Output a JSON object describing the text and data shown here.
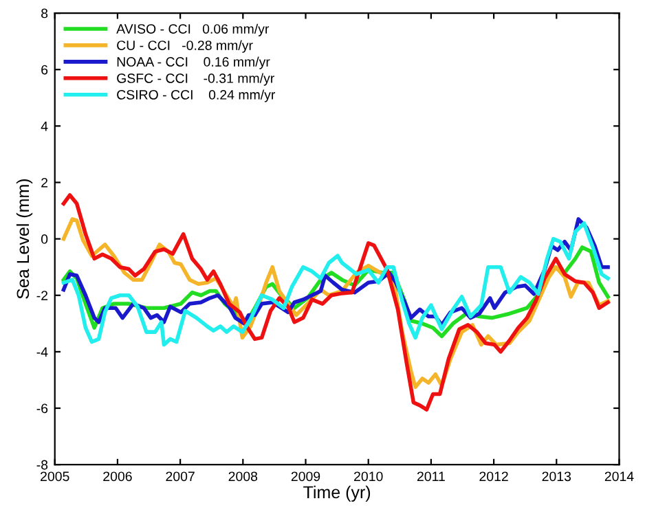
{
  "chart_data": {
    "type": "line",
    "xlabel": "Time (yr)",
    "ylabel": "Sea Level (mm)",
    "xlim": [
      2005,
      2014
    ],
    "xticks": [
      2005,
      2006,
      2007,
      2008,
      2009,
      2010,
      2011,
      2012,
      2013,
      2014
    ],
    "ylim": [
      -8,
      8
    ],
    "yticks": [
      -8,
      -6,
      -4,
      -2,
      0,
      2,
      4,
      6,
      8
    ],
    "grid": false,
    "legend": "top left",
    "marker": "none",
    "line_style": "solid",
    "series": [
      {
        "name": "AVISO - CCI   0.06 mm/yr",
        "color": "#22dd22",
        "x": [
          2005.14,
          2005.24,
          2005.35,
          2005.49,
          2005.63,
          2005.76,
          2005.94,
          2006.18,
          2006.46,
          2006.74,
          2007.01,
          2007.19,
          2007.33,
          2007.47,
          2007.57,
          2007.71,
          2007.92,
          2008.06,
          2008.19,
          2008.37,
          2008.47,
          2008.61,
          2008.82,
          2009.03,
          2009.24,
          2009.41,
          2009.58,
          2009.78,
          2010.0,
          2010.23,
          2010.4,
          2010.58,
          2010.68,
          2010.86,
          2011.03,
          2011.17,
          2011.35,
          2011.56,
          2011.77,
          2011.97,
          2012.25,
          2012.53,
          2012.74,
          2012.95,
          2013.13,
          2013.3,
          2013.41,
          2013.55,
          2013.68,
          2013.82
        ],
        "values": [
          -1.45,
          -1.15,
          -1.4,
          -2.3,
          -3.15,
          -2.45,
          -2.3,
          -2.3,
          -2.45,
          -2.45,
          -2.3,
          -1.9,
          -2.0,
          -1.85,
          -1.85,
          -2.3,
          -2.7,
          -2.95,
          -2.45,
          -1.7,
          -1.6,
          -2.0,
          -2.45,
          -2.1,
          -1.45,
          -1.2,
          -1.45,
          -1.65,
          -1.1,
          -1.2,
          -1.2,
          -2.2,
          -2.9,
          -3.0,
          -3.15,
          -3.45,
          -3.0,
          -2.65,
          -2.75,
          -2.8,
          -2.65,
          -2.45,
          -1.9,
          -1.0,
          -1.2,
          -0.7,
          -0.3,
          -0.45,
          -1.55,
          -2.05
        ]
      },
      {
        "name": "CU - CCI   -0.28 mm/yr",
        "color": "#f5b52a",
        "x": [
          2005.14,
          2005.28,
          2005.35,
          2005.45,
          2005.59,
          2005.8,
          2005.94,
          2006.11,
          2006.25,
          2006.39,
          2006.53,
          2006.67,
          2006.81,
          2006.91,
          2007.01,
          2007.15,
          2007.29,
          2007.43,
          2007.57,
          2007.71,
          2007.85,
          2007.89,
          2007.99,
          2008.12,
          2008.26,
          2008.37,
          2008.47,
          2008.58,
          2008.72,
          2008.85,
          2009.03,
          2009.24,
          2009.37,
          2009.58,
          2009.81,
          2010.0,
          2010.23,
          2010.4,
          2010.54,
          2010.68,
          2010.75,
          2010.86,
          2010.96,
          2011.07,
          2011.17,
          2011.31,
          2011.49,
          2011.66,
          2011.8,
          2011.91,
          2012.04,
          2012.25,
          2012.39,
          2012.57,
          2012.74,
          2012.88,
          2012.99,
          2013.13,
          2013.23,
          2013.34,
          2013.51,
          2013.68,
          2013.82
        ],
        "values": [
          0.0,
          0.7,
          0.65,
          -0.05,
          -0.6,
          -0.2,
          -0.6,
          -1.2,
          -1.45,
          -1.45,
          -0.85,
          -0.2,
          -0.45,
          -0.85,
          -0.9,
          -1.45,
          -1.6,
          -1.55,
          -1.4,
          -1.9,
          -2.4,
          -2.1,
          -3.5,
          -3.1,
          -2.3,
          -1.55,
          -1.0,
          -1.85,
          -2.3,
          -2.7,
          -2.3,
          -1.8,
          -2.0,
          -1.85,
          -1.2,
          -0.95,
          -1.25,
          -1.4,
          -3.3,
          -4.7,
          -5.25,
          -4.95,
          -5.1,
          -4.8,
          -5.2,
          -4.25,
          -3.3,
          -3.05,
          -3.75,
          -3.45,
          -3.75,
          -3.7,
          -3.3,
          -2.9,
          -2.05,
          -1.35,
          -1.0,
          -1.35,
          -2.05,
          -1.55,
          -1.55,
          -2.35,
          -2.2
        ]
      },
      {
        "name": "NOAA - CCI    0.16 mm/yr",
        "color": "#1a1acc",
        "x": [
          2005.14,
          2005.24,
          2005.35,
          2005.49,
          2005.63,
          2005.7,
          2005.8,
          2005.97,
          2006.08,
          2006.25,
          2006.42,
          2006.53,
          2006.63,
          2006.74,
          2006.84,
          2007.01,
          2007.15,
          2007.33,
          2007.47,
          2007.6,
          2007.78,
          2007.88,
          2008.02,
          2008.09,
          2008.19,
          2008.3,
          2008.47,
          2008.58,
          2008.72,
          2008.82,
          2008.96,
          2009.1,
          2009.24,
          2009.31,
          2009.44,
          2009.58,
          2009.78,
          2010.0,
          2010.16,
          2010.33,
          2010.44,
          2010.58,
          2010.68,
          2010.82,
          2010.96,
          2011.07,
          2011.17,
          2011.31,
          2011.49,
          2011.63,
          2011.77,
          2011.94,
          2012.01,
          2012.18,
          2012.36,
          2012.5,
          2012.64,
          2012.81,
          2012.92,
          2013.02,
          2013.13,
          2013.23,
          2013.35,
          2013.48,
          2013.61,
          2013.72,
          2013.82
        ],
        "values": [
          -1.8,
          -1.25,
          -1.3,
          -2.0,
          -2.8,
          -2.95,
          -2.45,
          -2.45,
          -2.8,
          -2.3,
          -2.45,
          -2.8,
          -2.7,
          -2.95,
          -2.4,
          -2.6,
          -2.3,
          -2.25,
          -2.1,
          -2.0,
          -2.4,
          -2.8,
          -3.0,
          -2.7,
          -2.7,
          -2.3,
          -2.25,
          -2.4,
          -2.6,
          -2.25,
          -2.15,
          -2.0,
          -1.85,
          -1.3,
          -1.55,
          -1.8,
          -1.9,
          -1.55,
          -1.5,
          -1.2,
          -1.55,
          -2.25,
          -2.8,
          -2.5,
          -2.75,
          -2.75,
          -3.05,
          -2.6,
          -2.45,
          -2.8,
          -2.65,
          -2.1,
          -2.45,
          -1.9,
          -1.7,
          -1.65,
          -1.95,
          -1.1,
          -0.25,
          -0.4,
          -0.1,
          -0.4,
          0.7,
          0.4,
          -0.25,
          -1.0,
          -1.0
        ]
      },
      {
        "name": "GSFC - CCI    -0.31 mm/yr",
        "color": "#ee1111",
        "x": [
          2005.14,
          2005.24,
          2005.35,
          2005.49,
          2005.63,
          2005.76,
          2005.9,
          2006.04,
          2006.18,
          2006.28,
          2006.42,
          2006.6,
          2006.74,
          2006.88,
          2007.05,
          2007.19,
          2007.33,
          2007.43,
          2007.53,
          2007.64,
          2007.78,
          2007.95,
          2008.06,
          2008.19,
          2008.3,
          2008.44,
          2008.58,
          2008.72,
          2008.82,
          2008.96,
          2009.1,
          2009.27,
          2009.41,
          2009.58,
          2009.74,
          2010.0,
          2010.09,
          2010.3,
          2010.47,
          2010.61,
          2010.72,
          2010.82,
          2010.93,
          2011.03,
          2011.14,
          2011.28,
          2011.45,
          2011.59,
          2011.73,
          2011.87,
          2012.01,
          2012.11,
          2012.25,
          2012.39,
          2012.53,
          2012.67,
          2012.81,
          2012.99,
          2013.13,
          2013.3,
          2013.44,
          2013.58,
          2013.68,
          2013.82
        ],
        "values": [
          1.25,
          1.55,
          1.25,
          0.17,
          -0.7,
          -0.55,
          -0.7,
          -1.0,
          -1.07,
          -1.3,
          -1.07,
          -0.45,
          -0.37,
          -0.53,
          0.17,
          -0.7,
          -1.07,
          -1.45,
          -1.15,
          -1.6,
          -2.3,
          -2.6,
          -3.1,
          -3.55,
          -3.5,
          -2.55,
          -2.1,
          -2.4,
          -2.95,
          -2.8,
          -2.15,
          -2.3,
          -2.0,
          -1.93,
          -1.9,
          -0.15,
          -0.23,
          -1.1,
          -2.5,
          -4.4,
          -5.8,
          -5.9,
          -6.05,
          -5.5,
          -5.5,
          -4.25,
          -3.2,
          -3.05,
          -3.3,
          -3.7,
          -3.75,
          -4.0,
          -3.6,
          -3.15,
          -2.8,
          -2.2,
          -1.4,
          -0.7,
          -1.25,
          -1.5,
          -1.55,
          -1.9,
          -2.45,
          -2.25
        ]
      },
      {
        "name": "CSIRO - CCI    0.24 mm/yr",
        "color": "#22eeee",
        "x": [
          2005.14,
          2005.28,
          2005.38,
          2005.49,
          2005.59,
          2005.7,
          2005.8,
          2005.9,
          2006.04,
          2006.18,
          2006.32,
          2006.46,
          2006.6,
          2006.7,
          2006.74,
          2006.84,
          2006.94,
          2007.08,
          2007.26,
          2007.43,
          2007.53,
          2007.64,
          2007.74,
          2007.85,
          2007.99,
          2008.12,
          2008.3,
          2008.47,
          2008.65,
          2008.78,
          2008.96,
          2009.1,
          2009.24,
          2009.37,
          2009.51,
          2009.58,
          2009.81,
          2010.0,
          2010.16,
          2010.3,
          2010.4,
          2010.54,
          2010.65,
          2010.75,
          2010.86,
          2011.0,
          2011.17,
          2011.35,
          2011.49,
          2011.63,
          2011.8,
          2011.91,
          2012.11,
          2012.25,
          2012.43,
          2012.57,
          2012.71,
          2012.85,
          2012.95,
          2013.06,
          2013.2,
          2013.3,
          2013.44,
          2013.58,
          2013.72,
          2013.82
        ],
        "values": [
          -1.55,
          -1.45,
          -2.0,
          -3.15,
          -3.65,
          -3.55,
          -2.6,
          -2.1,
          -2.0,
          -2.0,
          -2.4,
          -3.3,
          -3.3,
          -2.95,
          -3.75,
          -3.55,
          -3.65,
          -2.55,
          -2.8,
          -3.1,
          -3.25,
          -3.1,
          -3.3,
          -3.1,
          -3.3,
          -2.85,
          -2.0,
          -2.15,
          -2.45,
          -1.7,
          -1.0,
          -1.15,
          -1.4,
          -0.85,
          -0.6,
          -0.85,
          -1.25,
          -1.1,
          -1.55,
          -1.0,
          -1.0,
          -2.2,
          -3.0,
          -3.5,
          -2.8,
          -2.35,
          -3.2,
          -2.5,
          -2.05,
          -2.75,
          -2.35,
          -1.0,
          -1.0,
          -1.9,
          -1.35,
          -1.55,
          -1.95,
          -0.7,
          0.0,
          -0.1,
          -0.7,
          0.25,
          0.55,
          -0.3,
          -1.25,
          -1.4
        ]
      }
    ]
  }
}
